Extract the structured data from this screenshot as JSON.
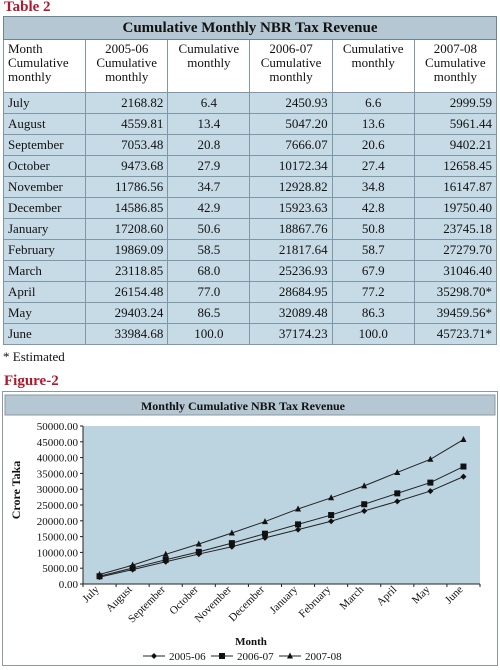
{
  "table_caption": "Table 2",
  "table_title": "Cumulative Monthly NBR Tax Revenue",
  "headers": [
    [
      "Month",
      "Cumulative",
      "monthly"
    ],
    [
      "2005-06",
      "Cumulative",
      "monthly"
    ],
    [
      "Cumulative",
      "monthly"
    ],
    [
      "2006-07",
      "Cumulative",
      "monthly"
    ],
    [
      "Cumulative",
      "monthly"
    ],
    [
      "2007-08",
      "Cumulative",
      "monthly"
    ]
  ],
  "rows": [
    [
      "July",
      "2168.82",
      "6.4",
      "2450.93",
      "6.6",
      "2999.59"
    ],
    [
      "August",
      "4559.81",
      "13.4",
      "5047.20",
      "13.6",
      "5961.44"
    ],
    [
      "September",
      "7053.48",
      "20.8",
      "7666.07",
      "20.6",
      "9402.21"
    ],
    [
      "October",
      "9473.68",
      "27.9",
      "10172.34",
      "27.4",
      "12658.45"
    ],
    [
      "November",
      "11786.56",
      "34.7",
      "12928.82",
      "34.8",
      "16147.87"
    ],
    [
      "December",
      "14586.85",
      "42.9",
      "15923.63",
      "42.8",
      "19750.40"
    ],
    [
      "January",
      "17208.60",
      "50.6",
      "18867.76",
      "50.8",
      "23745.18"
    ],
    [
      "February",
      "19869.09",
      "58.5",
      "21817.64",
      "58.7",
      "27279.70"
    ],
    [
      "March",
      "23118.85",
      "68.0",
      "25236.93",
      "67.9",
      "31046.40"
    ],
    [
      "April",
      "26154.48",
      "77.0",
      "28684.95",
      "77.2",
      "35298.70*"
    ],
    [
      "May",
      "29403.24",
      "86.5",
      "32089.48",
      "86.3",
      "39459.56*"
    ],
    [
      "June",
      "33984.68",
      "100.0",
      "37174.23",
      "100.0",
      "45723.71*"
    ]
  ],
  "note": "* Estimated",
  "figure_caption": "Figure-2",
  "chart_data": {
    "type": "line",
    "title": "Monthly Cumulative NBR Tax Revenue",
    "xlabel": "Month",
    "ylabel": "Crore Taka",
    "ylim": [
      0,
      50000
    ],
    "yticks": [
      "0.00",
      "5000.00",
      "10000.00",
      "15000.00",
      "20000.00",
      "25000.00",
      "30000.00",
      "35000.00",
      "40000.00",
      "45000.00",
      "50000.00"
    ],
    "categories": [
      "July",
      "August",
      "September",
      "October",
      "November",
      "December",
      "January",
      "February",
      "March",
      "April",
      "May",
      "June"
    ],
    "series": [
      {
        "name": "2005-06",
        "marker": "diamond",
        "values": [
          2168.82,
          4559.81,
          7053.48,
          9473.68,
          11786.56,
          14586.85,
          17208.6,
          19869.09,
          23118.85,
          26154.48,
          29403.24,
          33984.68
        ]
      },
      {
        "name": "2006-07",
        "marker": "square",
        "values": [
          2450.93,
          5047.2,
          7666.07,
          10172.34,
          12928.82,
          15923.63,
          18867.76,
          21817.64,
          25236.93,
          28684.95,
          32089.48,
          37174.23
        ]
      },
      {
        "name": "2007-08",
        "marker": "triangle",
        "values": [
          2999.59,
          5961.44,
          9402.21,
          12658.45,
          16147.87,
          19750.4,
          23745.18,
          27279.7,
          31046.4,
          35298.7,
          39459.56,
          45723.71
        ]
      }
    ],
    "legend": "bottom",
    "grid": false,
    "colors": {
      "plot_bg": "#bcd3e0",
      "title_bar": "#b4c7d2",
      "line": "#222222"
    }
  }
}
